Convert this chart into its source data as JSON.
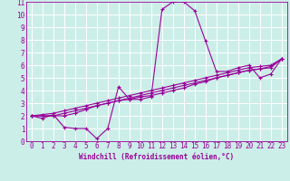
{
  "xlabel": "Windchill (Refroidissement éolien,°C)",
  "ylabel": "",
  "background_color": "#cceee8",
  "line_color": "#990099",
  "grid_color": "#ffffff",
  "xlim": [
    -0.5,
    23.5
  ],
  "ylim": [
    0,
    11
  ],
  "xticks": [
    0,
    1,
    2,
    3,
    4,
    5,
    6,
    7,
    8,
    9,
    10,
    11,
    12,
    13,
    14,
    15,
    16,
    17,
    18,
    19,
    20,
    21,
    22,
    23
  ],
  "yticks": [
    0,
    1,
    2,
    3,
    4,
    5,
    6,
    7,
    8,
    9,
    10,
    11
  ],
  "series": [
    [
      2.0,
      1.8,
      2.1,
      1.1,
      1.0,
      1.0,
      0.2,
      1.0,
      4.3,
      3.3,
      3.3,
      3.5,
      10.4,
      11.0,
      11.0,
      10.3,
      7.9,
      5.5,
      5.5,
      5.8,
      6.0,
      5.0,
      5.3,
      6.5
    ],
    [
      2.0,
      2.0,
      2.0,
      2.0,
      2.2,
      2.5,
      2.8,
      3.0,
      3.2,
      3.3,
      3.5,
      3.6,
      3.8,
      4.0,
      4.2,
      4.5,
      4.7,
      5.0,
      5.2,
      5.4,
      5.6,
      5.7,
      5.8,
      6.5
    ],
    [
      2.0,
      2.0,
      2.0,
      2.2,
      2.4,
      2.6,
      2.8,
      3.0,
      3.2,
      3.4,
      3.6,
      3.8,
      4.0,
      4.2,
      4.4,
      4.6,
      4.8,
      5.0,
      5.2,
      5.4,
      5.6,
      5.7,
      5.9,
      6.5
    ],
    [
      2.0,
      2.1,
      2.2,
      2.4,
      2.6,
      2.8,
      3.0,
      3.2,
      3.4,
      3.6,
      3.8,
      4.0,
      4.2,
      4.4,
      4.6,
      4.8,
      5.0,
      5.2,
      5.4,
      5.6,
      5.8,
      5.9,
      6.0,
      6.5
    ]
  ],
  "tick_fontsize": 5.5,
  "xlabel_fontsize": 5.5
}
